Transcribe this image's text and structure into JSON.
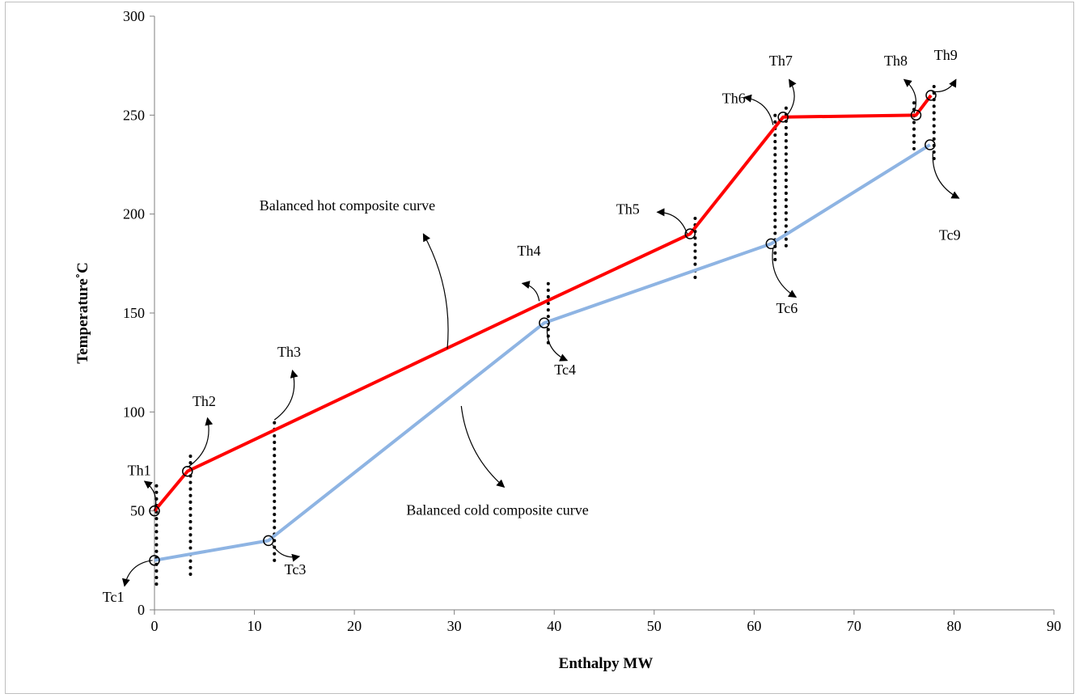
{
  "chart_data": {
    "type": "line",
    "title": "",
    "xlabel": "Enthalpy MW",
    "ylabel": "Temperature˚C",
    "xlim": [
      0,
      90
    ],
    "ylim": [
      0,
      300
    ],
    "xticks": [
      0,
      10,
      20,
      30,
      40,
      50,
      60,
      70,
      80,
      90
    ],
    "yticks": [
      0,
      50,
      100,
      150,
      200,
      250,
      300
    ],
    "grid": false,
    "legend": "none",
    "series": [
      {
        "color": "#ff0000",
        "x": [
          0,
          3.3,
          38.8,
          53.6,
          62.9,
          76.2,
          77.7
        ],
        "y": [
          50,
          70,
          155,
          190,
          249,
          250,
          260
        ]
      },
      {
        "color": "#8eb4e3",
        "x": [
          0,
          11.4,
          39,
          61.7,
          77.6
        ],
        "y": [
          25,
          35,
          145,
          185,
          235
        ]
      }
    ],
    "markers": [
      {
        "x": 0,
        "y": 50
      },
      {
        "x": 3.3,
        "y": 70
      },
      {
        "x": 53.6,
        "y": 190
      },
      {
        "x": 62.9,
        "y": 249
      },
      {
        "x": 76.2,
        "y": 250
      },
      {
        "x": 77.7,
        "y": 260
      },
      {
        "x": 0,
        "y": 25
      },
      {
        "x": 11.4,
        "y": 35
      },
      {
        "x": 39,
        "y": 145
      },
      {
        "x": 61.7,
        "y": 185
      },
      {
        "x": 77.6,
        "y": 235
      }
    ],
    "dotted_lines": [
      {
        "x": 0.2,
        "y1": 13,
        "y2": 65
      },
      {
        "x": 3.6,
        "y1": 18,
        "y2": 78
      },
      {
        "x": 12.0,
        "y1": 25,
        "y2": 95
      },
      {
        "x": 39.4,
        "y1": 135,
        "y2": 165
      },
      {
        "x": 54.1,
        "y1": 168,
        "y2": 198
      },
      {
        "x": 62.1,
        "y1": 177,
        "y2": 250
      },
      {
        "x": 63.2,
        "y1": 184,
        "y2": 254
      },
      {
        "x": 76.0,
        "y1": 233,
        "y2": 257
      },
      {
        "x": 78.0,
        "y1": 228,
        "y2": 265
      }
    ],
    "annotations": [
      {
        "text": "Th1",
        "x": -2.7,
        "y": 68,
        "ax1": 0,
        "ay1": 50,
        "ax2": -1.0,
        "ay2": 65
      },
      {
        "text": "Th2",
        "x": 3.8,
        "y": 103,
        "ax1": 3.3,
        "ay1": 72,
        "ax2": 5.3,
        "ay2": 97
      },
      {
        "text": "Th3",
        "x": 12.3,
        "y": 128,
        "ax1": 12.0,
        "ay1": 96,
        "ax2": 13.8,
        "ay2": 121
      },
      {
        "text": "Th4",
        "x": 36.3,
        "y": 179,
        "ax1": 38.5,
        "ay1": 156,
        "ax2": 36.8,
        "ay2": 165
      },
      {
        "text": "Th5",
        "x": 46.2,
        "y": 200,
        "ax1": 53.3,
        "ay1": 190,
        "ax2": 50.3,
        "ay2": 201
      },
      {
        "text": "Th6",
        "x": 56.8,
        "y": 256,
        "ax1": 61.9,
        "ay1": 245,
        "ax2": 59.0,
        "ay2": 259
      },
      {
        "text": "Th7",
        "x": 61.5,
        "y": 275,
        "ax1": 63.3,
        "ay1": 250,
        "ax2": 63.5,
        "ay2": 268
      },
      {
        "text": "Th8",
        "x": 73.0,
        "y": 275,
        "ax1": 76.0,
        "ay1": 251,
        "ax2": 75.0,
        "ay2": 268
      },
      {
        "text": "Th9",
        "x": 78.0,
        "y": 278,
        "ax1": 77.8,
        "ay1": 262,
        "ax2": 80.2,
        "ay2": 268
      },
      {
        "text": "Tc1",
        "x": -5.2,
        "y": 4,
        "ax1": -0.2,
        "ay1": 25,
        "ax2": -3.0,
        "ay2": 12
      },
      {
        "text": "Tc3",
        "x": 13.0,
        "y": 18,
        "ax1": 11.8,
        "ay1": 33,
        "ax2": 14.5,
        "ay2": 27
      },
      {
        "text": "Tc4",
        "x": 40.0,
        "y": 119,
        "ax1": 39.3,
        "ay1": 143,
        "ax2": 41.3,
        "ay2": 126
      },
      {
        "text": "Tc6",
        "x": 62.2,
        "y": 150,
        "ax1": 61.9,
        "ay1": 183,
        "ax2": 64.2,
        "ay2": 158
      },
      {
        "text": "Tc9",
        "x": 78.5,
        "y": 187,
        "ax1": 77.9,
        "ay1": 232,
        "ax2": 80.5,
        "ay2": 208
      },
      {
        "text": "Balanced hot composite curve",
        "x": 10.5,
        "y": 202,
        "ax1": 29.3,
        "ay1": 132,
        "ax2": 26.9,
        "ay2": 190
      },
      {
        "text": "Balanced cold composite curve",
        "x": 25.2,
        "y": 48,
        "ax1": 30.7,
        "ay1": 103,
        "ax2": 35.0,
        "ay2": 62
      }
    ]
  }
}
